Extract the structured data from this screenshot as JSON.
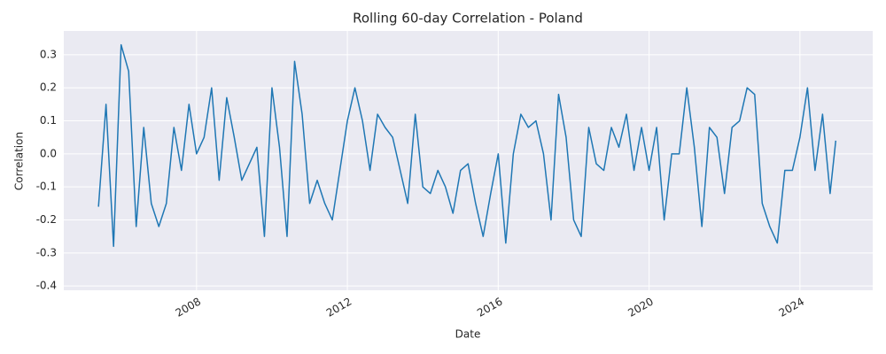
{
  "chart_data": {
    "type": "line",
    "title": "Rolling 60-day Correlation - Poland",
    "x_label": "Date",
    "y_label": "Correlation",
    "x": [
      2005.4,
      2005.6,
      2005.8,
      2006.0,
      2006.2,
      2006.4,
      2006.6,
      2006.8,
      2007.0,
      2007.2,
      2007.4,
      2007.6,
      2007.8,
      2008.0,
      2008.2,
      2008.4,
      2008.6,
      2008.8,
      2009.0,
      2009.2,
      2009.4,
      2009.6,
      2009.8,
      2010.0,
      2010.2,
      2010.4,
      2010.6,
      2010.8,
      2011.0,
      2011.2,
      2011.4,
      2011.6,
      2011.8,
      2012.0,
      2012.2,
      2012.4,
      2012.6,
      2012.8,
      2013.0,
      2013.2,
      2013.4,
      2013.6,
      2013.8,
      2014.0,
      2014.2,
      2014.4,
      2014.6,
      2014.8,
      2015.0,
      2015.2,
      2015.4,
      2015.6,
      2015.8,
      2016.0,
      2016.2,
      2016.4,
      2016.6,
      2016.8,
      2017.0,
      2017.2,
      2017.4,
      2017.6,
      2017.8,
      2018.0,
      2018.2,
      2018.4,
      2018.6,
      2018.8,
      2019.0,
      2019.2,
      2019.4,
      2019.6,
      2019.8,
      2020.0,
      2020.2,
      2020.4,
      2020.6,
      2020.8,
      2021.0,
      2021.2,
      2021.4,
      2021.6,
      2021.8,
      2022.0,
      2022.2,
      2022.4,
      2022.6,
      2022.8,
      2023.0,
      2023.2,
      2023.4,
      2023.6,
      2023.8,
      2024.0,
      2024.2,
      2024.4,
      2024.6,
      2024.8,
      2024.95
    ],
    "series": [
      {
        "name": "Poland",
        "color": "#1f77b4",
        "values": [
          -0.16,
          0.15,
          -0.28,
          0.33,
          0.25,
          -0.22,
          0.08,
          -0.15,
          -0.22,
          -0.15,
          0.08,
          -0.05,
          0.15,
          0.0,
          0.05,
          0.2,
          -0.08,
          0.17,
          0.05,
          -0.08,
          -0.03,
          0.02,
          -0.25,
          0.2,
          0.02,
          -0.25,
          0.28,
          0.12,
          -0.15,
          -0.08,
          -0.15,
          -0.2,
          -0.05,
          0.1,
          0.2,
          0.1,
          -0.05,
          0.12,
          0.08,
          0.05,
          -0.05,
          -0.15,
          0.12,
          -0.1,
          -0.12,
          -0.05,
          -0.1,
          -0.18,
          -0.05,
          -0.03,
          -0.15,
          -0.25,
          -0.12,
          0.0,
          -0.27,
          0.0,
          0.12,
          0.08,
          0.1,
          0.0,
          -0.2,
          0.18,
          0.05,
          -0.2,
          -0.25,
          0.08,
          -0.03,
          -0.05,
          0.08,
          0.02,
          0.12,
          -0.05,
          0.08,
          -0.05,
          0.08,
          -0.2,
          0.0,
          0.0,
          0.2,
          0.02,
          -0.22,
          0.08,
          0.05,
          -0.12,
          0.08,
          0.1,
          0.2,
          0.18,
          -0.15,
          -0.22,
          -0.27,
          -0.05,
          -0.05,
          0.05,
          0.2,
          -0.05,
          0.12,
          -0.12,
          0.04
        ]
      }
    ],
    "xlim": [
      2004.48,
      2025.93
    ],
    "xticks": [
      2008,
      2012,
      2016,
      2020,
      2024
    ],
    "ylim": [
      -0.413,
      0.372
    ],
    "yticks": [
      -0.4,
      -0.3,
      -0.2,
      -0.1,
      {
        "value": 0,
        "label": "0.0"
      },
      0.1,
      0.2,
      0.3
    ],
    "grid": true
  }
}
